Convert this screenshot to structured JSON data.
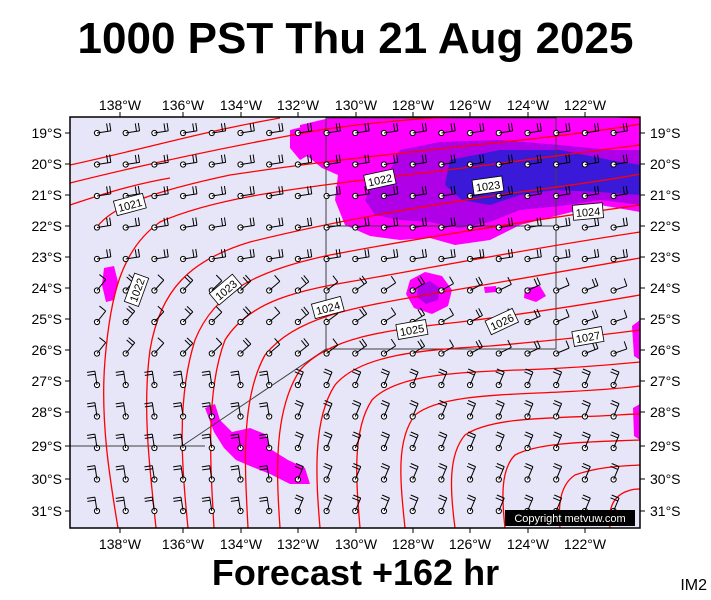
{
  "title": "1000 PST Thu 21 Aug 2025",
  "footer": "Forecast +162 hr",
  "tag": "IM2",
  "copyright": "Copyright metvuw.com",
  "lon_ticks": [
    "138°W",
    "136°W",
    "134°W",
    "132°W",
    "130°W",
    "128°W",
    "126°W",
    "124°W",
    "122°W"
  ],
  "lat_ticks": [
    "19°S",
    "20°S",
    "21°S",
    "22°S",
    "23°S",
    "24°S",
    "25°S",
    "26°S",
    "27°S",
    "28°S",
    "29°S",
    "30°S",
    "31°S"
  ],
  "isobar_labels": [
    "1021",
    "1022",
    "1022",
    "1023",
    "1023",
    "1024",
    "1024",
    "1025",
    "1026",
    "1027"
  ],
  "colors": {
    "ocean": "#e6e6f8",
    "isobar": "#ff0000",
    "rain_light": "#ff00ff",
    "rain_mid": "#b000e8",
    "rain_heavy": "#3a1ad8"
  }
}
